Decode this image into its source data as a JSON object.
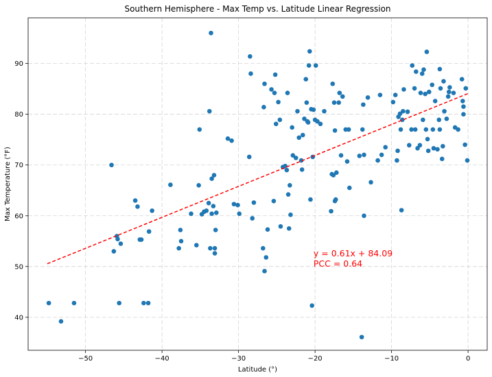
{
  "chart_data": {
    "type": "scatter",
    "title": "Southern Hemisphere - Max Temp vs. Latitude Linear Regression",
    "xlabel": "Latitude (°)",
    "ylabel": "Max Temperature (°F)",
    "xlim": [
      -57.5,
      2.5
    ],
    "ylim": [
      33.5,
      99
    ],
    "xticks": [
      -50,
      -40,
      -30,
      -20,
      -10,
      0
    ],
    "yticks": [
      40,
      50,
      60,
      70,
      80,
      90
    ],
    "xtick_labels": [
      "−50",
      "−40",
      "−30",
      "−20",
      "−10",
      "0"
    ],
    "ytick_labels": [
      "40",
      "50",
      "60",
      "70",
      "80",
      "90"
    ],
    "grid": true,
    "point_color": "#1f77b4",
    "regression": {
      "slope": 0.61,
      "intercept": 84.09,
      "x_range": [
        -55,
        0
      ],
      "color": "#ff0000",
      "equation_label": "y = 0.61x + 84.09",
      "pcc_label": "PCC = 0.64",
      "label_anchor": [
        -20.2,
        52
      ]
    },
    "points": [
      [
        -54.8,
        42.8
      ],
      [
        -53.2,
        39.2
      ],
      [
        -51.5,
        42.8
      ],
      [
        -46.6,
        70.0
      ],
      [
        -46.3,
        53.0
      ],
      [
        -45.9,
        56.0
      ],
      [
        -45.8,
        55.4
      ],
      [
        -45.6,
        42.8
      ],
      [
        -45.4,
        54.5
      ],
      [
        -43.5,
        63.0
      ],
      [
        -43.2,
        61.8
      ],
      [
        -42.9,
        55.3
      ],
      [
        -42.7,
        55.3
      ],
      [
        -42.4,
        42.8
      ],
      [
        -41.8,
        42.8
      ],
      [
        -41.7,
        56.9
      ],
      [
        -41.3,
        61.0
      ],
      [
        -38.9,
        66.1
      ],
      [
        -37.8,
        53.6
      ],
      [
        -37.6,
        57.2
      ],
      [
        -37.5,
        55.0
      ],
      [
        -36.2,
        60.4
      ],
      [
        -35.5,
        54.2
      ],
      [
        -35.2,
        66.0
      ],
      [
        -35.1,
        77.0
      ],
      [
        -34.8,
        60.3
      ],
      [
        -34.5,
        60.8
      ],
      [
        -34.2,
        61.0
      ],
      [
        -33.9,
        62.5
      ],
      [
        -33.8,
        80.6
      ],
      [
        -33.7,
        53.6
      ],
      [
        -33.6,
        96.0
      ],
      [
        -33.5,
        60.4
      ],
      [
        -33.5,
        67.3
      ],
      [
        -33.3,
        61.9
      ],
      [
        -33.2,
        68.0
      ],
      [
        -33.1,
        53.6
      ],
      [
        -33.1,
        52.6
      ],
      [
        -33.0,
        57.2
      ],
      [
        -32.9,
        60.6
      ],
      [
        -31.4,
        75.2
      ],
      [
        -30.9,
        74.8
      ],
      [
        -30.6,
        62.3
      ],
      [
        -30.1,
        62.1
      ],
      [
        -29.9,
        60.4
      ],
      [
        -28.6,
        71.6
      ],
      [
        -28.5,
        91.4
      ],
      [
        -28.4,
        88.0
      ],
      [
        -28.2,
        59.5
      ],
      [
        -28.0,
        62.6
      ],
      [
        -26.8,
        53.6
      ],
      [
        -26.7,
        81.4
      ],
      [
        -26.6,
        86.0
      ],
      [
        -26.6,
        49.1
      ],
      [
        -26.4,
        51.8
      ],
      [
        -26.2,
        57.3
      ],
      [
        -25.7,
        84.9
      ],
      [
        -25.4,
        62.9
      ],
      [
        -25.3,
        84.2
      ],
      [
        -25.2,
        87.8
      ],
      [
        -25.1,
        78.1
      ],
      [
        -24.8,
        82.4
      ],
      [
        -24.6,
        78.9
      ],
      [
        -24.5,
        57.9
      ],
      [
        -24.2,
        69.6
      ],
      [
        -23.9,
        69.8
      ],
      [
        -23.7,
        69.0
      ],
      [
        -23.6,
        84.2
      ],
      [
        -23.5,
        64.2
      ],
      [
        -23.4,
        57.5
      ],
      [
        -23.3,
        66.0
      ],
      [
        -23.2,
        60.2
      ],
      [
        -23.0,
        77.4
      ],
      [
        -22.9,
        71.9
      ],
      [
        -22.5,
        71.4
      ],
      [
        -22.3,
        80.6
      ],
      [
        -22.1,
        75.4
      ],
      [
        -21.8,
        70.9
      ],
      [
        -21.7,
        69.1
      ],
      [
        -21.6,
        75.9
      ],
      [
        -21.4,
        79.1
      ],
      [
        -21.2,
        86.9
      ],
      [
        -21.1,
        82.3
      ],
      [
        -21.0,
        78.6
      ],
      [
        -20.9,
        78.4
      ],
      [
        -20.8,
        89.6
      ],
      [
        -20.7,
        92.4
      ],
      [
        -20.6,
        63.2
      ],
      [
        -20.5,
        81.0
      ],
      [
        -20.4,
        42.3
      ],
      [
        -20.3,
        71.6
      ],
      [
        -20.2,
        80.9
      ],
      [
        -20.0,
        78.9
      ],
      [
        -19.9,
        89.6
      ],
      [
        -19.7,
        78.6
      ],
      [
        -19.3,
        78.1
      ],
      [
        -18.8,
        80.6
      ],
      [
        -17.9,
        60.9
      ],
      [
        -17.8,
        68.2
      ],
      [
        -17.7,
        86.0
      ],
      [
        -17.6,
        68.0
      ],
      [
        -17.5,
        82.3
      ],
      [
        -17.4,
        76.8
      ],
      [
        -17.4,
        62.9
      ],
      [
        -17.3,
        63.2
      ],
      [
        -17.2,
        68.5
      ],
      [
        -16.9,
        82.3
      ],
      [
        -16.8,
        84.2
      ],
      [
        -16.6,
        71.9
      ],
      [
        -16.4,
        83.5
      ],
      [
        -16.0,
        77.0
      ],
      [
        -15.8,
        70.7
      ],
      [
        -15.6,
        77.0
      ],
      [
        -15.5,
        65.5
      ],
      [
        -14.2,
        71.8
      ],
      [
        -13.9,
        36.1
      ],
      [
        -13.8,
        77.0
      ],
      [
        -13.7,
        81.9
      ],
      [
        -13.6,
        60.0
      ],
      [
        -13.6,
        72.0
      ],
      [
        -13.1,
        83.3
      ],
      [
        -12.7,
        66.6
      ],
      [
        -11.8,
        70.9
      ],
      [
        -11.5,
        83.8
      ],
      [
        -11.3,
        72.0
      ],
      [
        -10.8,
        73.5
      ],
      [
        -9.8,
        82.4
      ],
      [
        -9.5,
        83.8
      ],
      [
        -9.3,
        70.9
      ],
      [
        -9.2,
        72.8
      ],
      [
        -9.1,
        79.5
      ],
      [
        -8.9,
        80.1
      ],
      [
        -8.8,
        77.0
      ],
      [
        -8.7,
        61.1
      ],
      [
        -8.6,
        78.9
      ],
      [
        -8.5,
        80.6
      ],
      [
        -8.4,
        84.9
      ],
      [
        -7.9,
        80.5
      ],
      [
        -7.7,
        73.9
      ],
      [
        -7.4,
        77.0
      ],
      [
        -7.3,
        89.6
      ],
      [
        -7.0,
        85.1
      ],
      [
        -6.9,
        77.0
      ],
      [
        -6.8,
        88.4
      ],
      [
        -6.6,
        73.3
      ],
      [
        -6.3,
        73.9
      ],
      [
        -6.2,
        84.2
      ],
      [
        -6.0,
        88.0
      ],
      [
        -5.9,
        78.9
      ],
      [
        -5.8,
        88.8
      ],
      [
        -5.6,
        84.0
      ],
      [
        -5.5,
        77.0
      ],
      [
        -5.4,
        92.3
      ],
      [
        -5.3,
        75.1
      ],
      [
        -5.2,
        72.8
      ],
      [
        -5.1,
        84.4
      ],
      [
        -4.7,
        85.8
      ],
      [
        -4.6,
        77.0
      ],
      [
        -4.5,
        73.3
      ],
      [
        -4.3,
        82.6
      ],
      [
        -4.0,
        73.1
      ],
      [
        -3.8,
        78.9
      ],
      [
        -3.7,
        88.9
      ],
      [
        -3.7,
        77.0
      ],
      [
        -3.6,
        85.1
      ],
      [
        -3.4,
        71.2
      ],
      [
        -3.3,
        73.7
      ],
      [
        -3.2,
        86.5
      ],
      [
        -3.1,
        80.6
      ],
      [
        -2.8,
        79.1
      ],
      [
        -2.6,
        83.5
      ],
      [
        -2.5,
        84.4
      ],
      [
        -2.4,
        85.3
      ],
      [
        -1.9,
        84.2
      ],
      [
        -1.7,
        77.4
      ],
      [
        -1.3,
        77.0
      ],
      [
        -0.8,
        86.9
      ],
      [
        -0.7,
        82.6
      ],
      [
        -0.6,
        80.0
      ],
      [
        -0.6,
        81.5
      ],
      [
        -0.4,
        74.0
      ],
      [
        -0.3,
        85.1
      ],
      [
        -0.1,
        70.9
      ]
    ]
  }
}
